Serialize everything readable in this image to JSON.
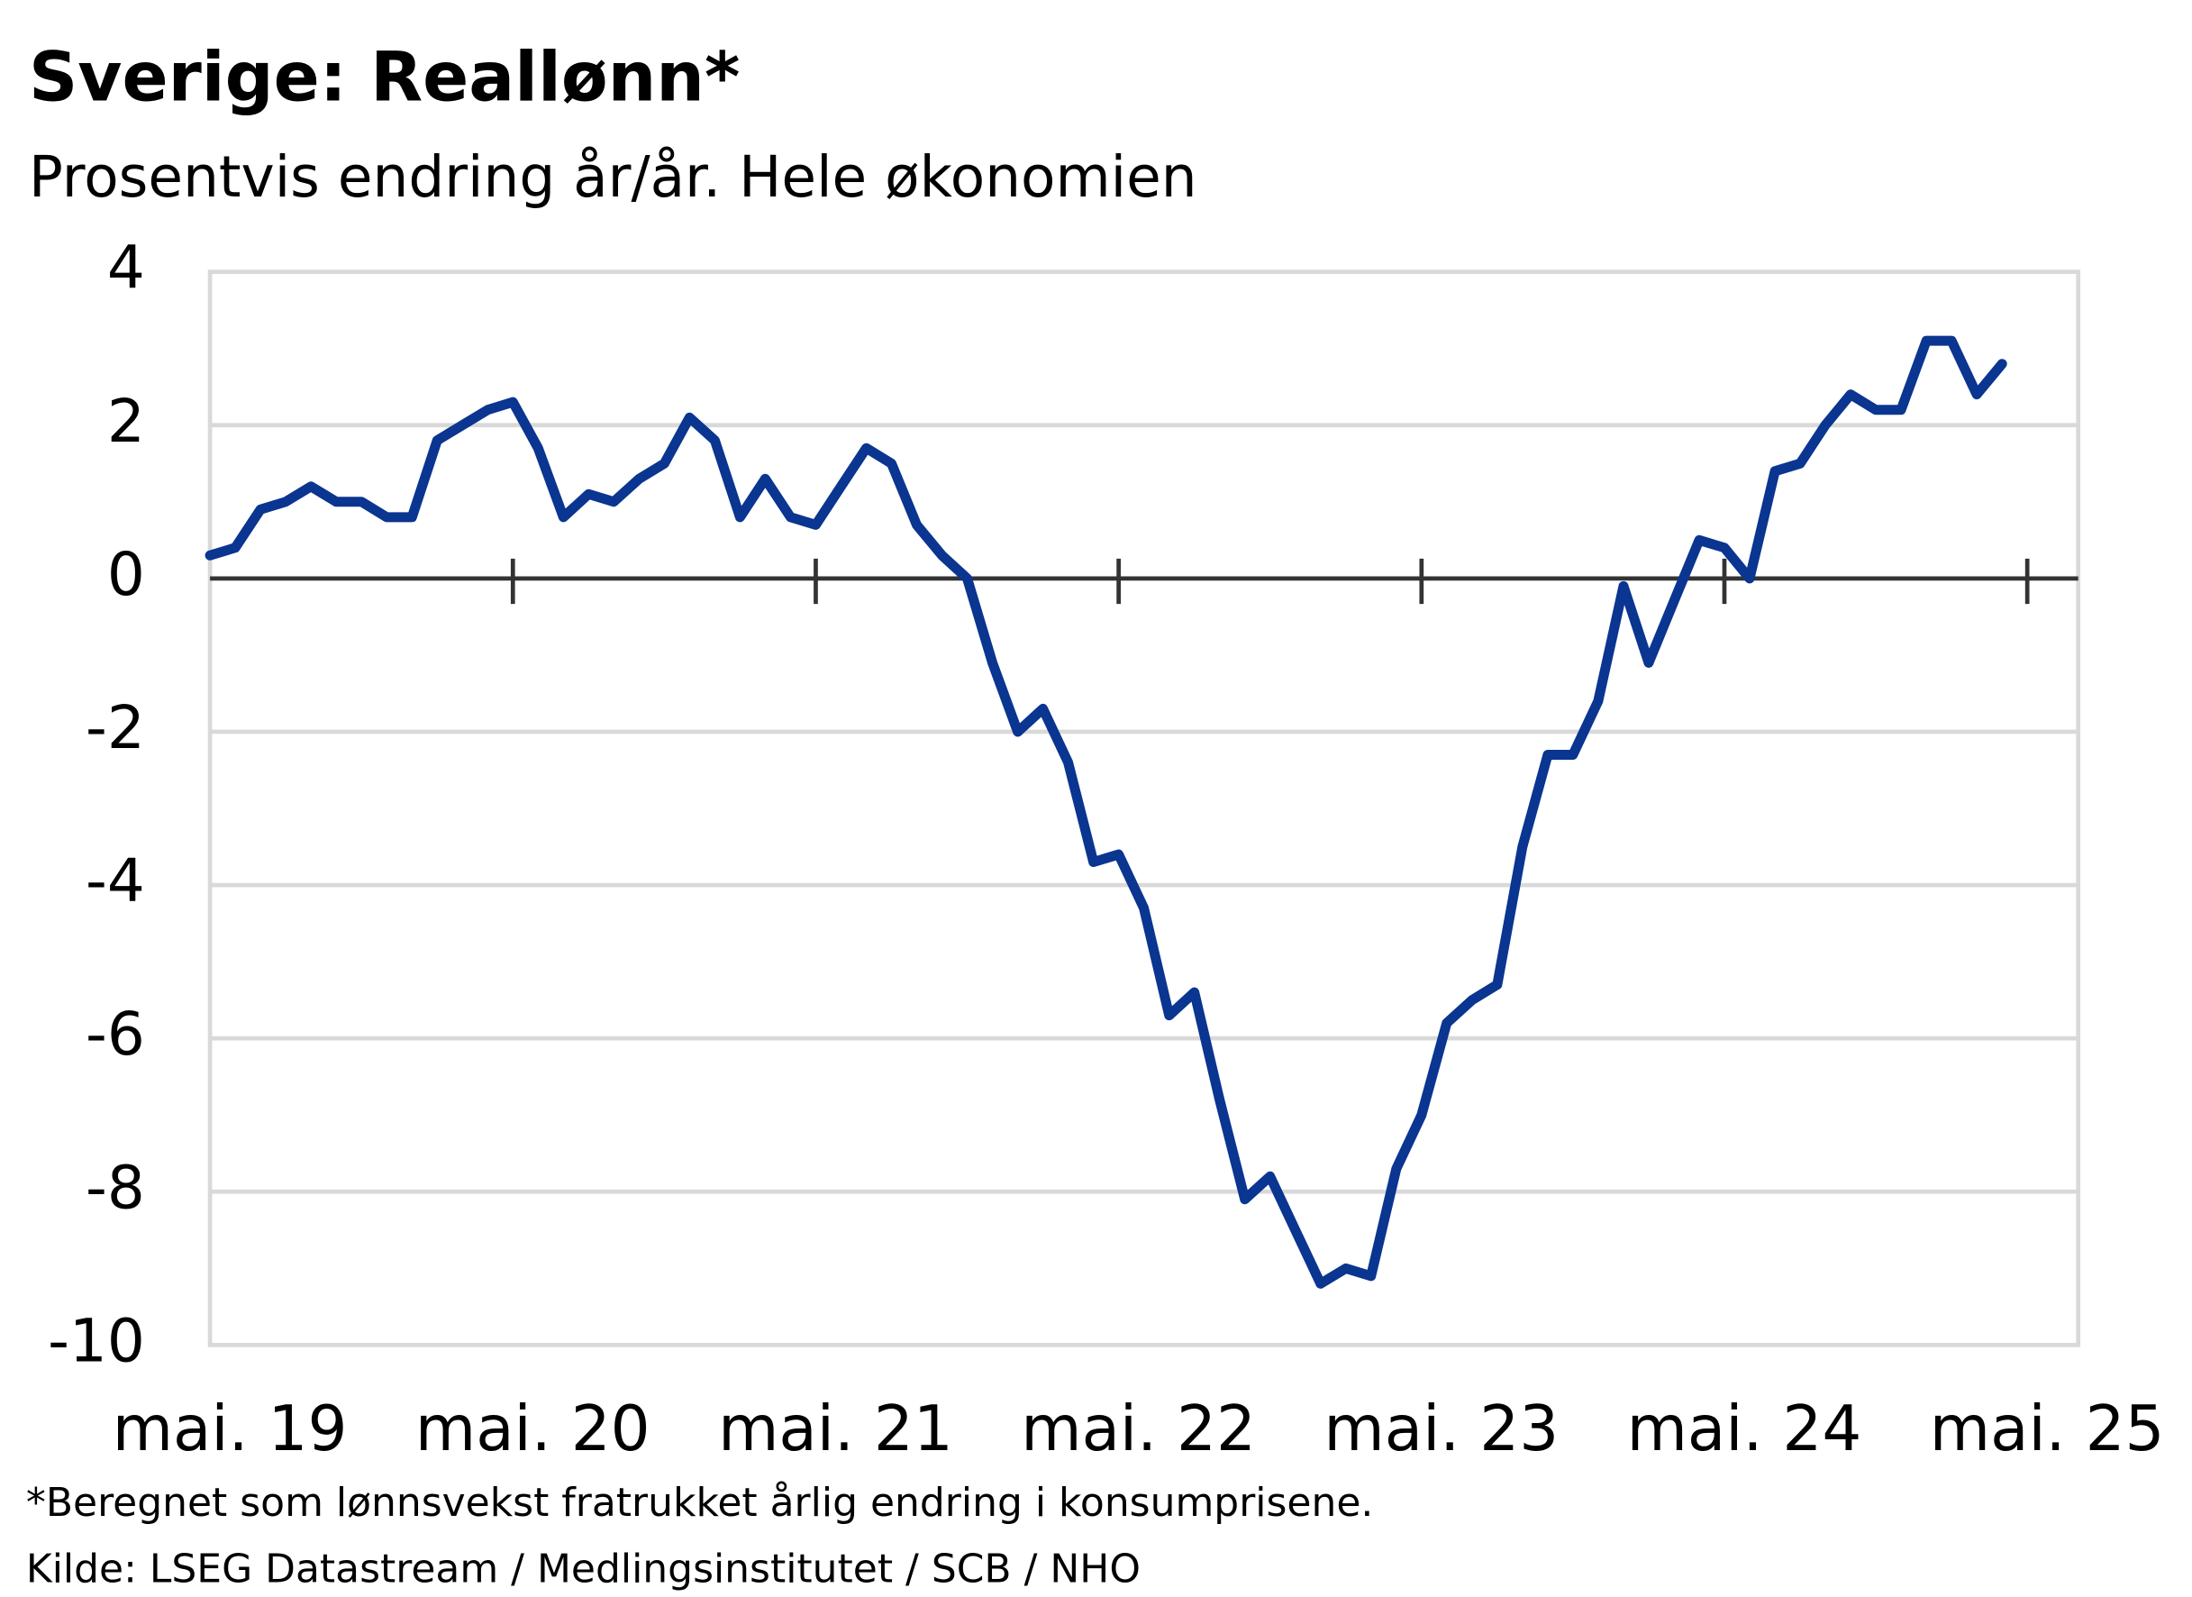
{
  "chart_data": {
    "type": "line",
    "title": "Sverige:  Reallønn*",
    "subtitle": "Prosentvis endring år/år. Hele økonomien",
    "footnote": "*Beregnet som lønnsvekst fratrukket årlig endring i konsumprisene.",
    "source": "Kilde: LSEG Datastream / Medlingsinstitutet / SCB / NHO",
    "categories": [
      "mai. 19",
      null,
      null,
      null,
      null,
      null,
      null,
      null,
      null,
      null,
      null,
      null,
      "mai. 20",
      null,
      null,
      null,
      null,
      null,
      null,
      null,
      null,
      null,
      null,
      null,
      "mai. 21",
      null,
      null,
      null,
      null,
      null,
      null,
      null,
      null,
      null,
      null,
      null,
      "mai. 22",
      null,
      null,
      null,
      null,
      null,
      null,
      null,
      null,
      null,
      null,
      null,
      "mai. 23",
      null,
      null,
      null,
      null,
      null,
      null,
      null,
      null,
      null,
      null,
      null,
      "mai. 24",
      null,
      null,
      null,
      null,
      null,
      null,
      null,
      null,
      null,
      null,
      null,
      "mai. 25"
    ],
    "series": [
      {
        "name": "Reallønn",
        "color": "#0a3590",
        "values": [
          0.3,
          0.4,
          0.9,
          1.0,
          1.2,
          1.0,
          1.0,
          0.8,
          0.8,
          1.8,
          2.0,
          2.2,
          2.3,
          1.7,
          0.8,
          1.1,
          1.0,
          1.3,
          1.5,
          2.1,
          1.8,
          0.8,
          1.3,
          0.8,
          0.7,
          1.2,
          1.7,
          1.5,
          0.7,
          0.3,
          0.0,
          -1.1,
          -2.0,
          -1.7,
          -2.4,
          -3.7,
          -3.6,
          -4.3,
          -5.7,
          -5.4,
          -6.8,
          -8.1,
          -7.8,
          -8.5,
          -9.2,
          -9.0,
          -9.1,
          -7.7,
          -7.0,
          -5.8,
          -5.5,
          -5.3,
          -3.5,
          -2.3,
          -2.3,
          -1.6,
          -0.1,
          -1.1,
          -0.3,
          0.5,
          0.4,
          0.0,
          1.4,
          1.5,
          2.0,
          2.4,
          2.2,
          2.2,
          3.1,
          3.1,
          2.4,
          2.8,
          null
        ]
      }
    ],
    "ylim": [
      -10,
      4
    ],
    "yticks": [
      -10,
      -8,
      -6,
      -4,
      -2,
      0,
      2,
      4
    ],
    "grid": true
  }
}
